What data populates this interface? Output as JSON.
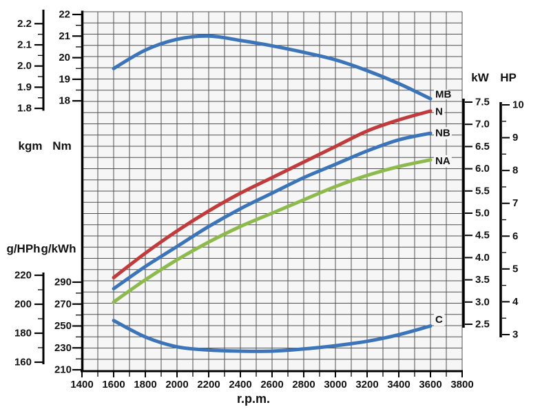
{
  "chart_data": {
    "type": "line",
    "title": "",
    "grid": true,
    "x_axis": {
      "label": "r.p.m.",
      "min": 1400,
      "max": 3800,
      "major_step": 200,
      "minor_step": 100,
      "tick_labels": [
        "1400",
        "1600",
        "1800",
        "2000",
        "2200",
        "2400",
        "2600",
        "2800",
        "3000",
        "3200",
        "3400",
        "3600",
        "3800"
      ]
    },
    "left_top_axes": {
      "kgm": {
        "label": "kgm",
        "min": 1.8,
        "max": 2.2,
        "major_step": 0.1,
        "minor_step": 0.05,
        "tick_labels": [
          "2.2",
          "2.1",
          "2.0",
          "1.9",
          "1.8"
        ]
      },
      "nm": {
        "label": "Nm",
        "min": 18,
        "max": 22,
        "major_step": 1,
        "minor_step": 0.5,
        "tick_labels": [
          "22",
          "21",
          "20",
          "19",
          "18"
        ]
      }
    },
    "left_bottom_axes": {
      "g_hph": {
        "label": "g/HPh",
        "min": 160,
        "max": 220,
        "major_step": 20,
        "minor_step": 10,
        "tick_labels": [
          "220",
          "200",
          "180",
          "160"
        ]
      },
      "g_kwh": {
        "label": "g/kWh",
        "min": 210,
        "max": 290,
        "major_step": 20,
        "minor_step": 10,
        "tick_labels": [
          "290",
          "270",
          "250",
          "230",
          "210"
        ]
      }
    },
    "right_axes": {
      "kw": {
        "label": "kW",
        "min": 2.5,
        "max": 7.5,
        "major_step": 0.5,
        "tick_labels": [
          "7.5",
          "7.0",
          "6.5",
          "6.0",
          "5.5",
          "5.0",
          "4.5",
          "4.0",
          "3.5",
          "3.0",
          "2.5"
        ]
      },
      "hp": {
        "label": "HP",
        "min": 3,
        "max": 10,
        "major_step": 1,
        "minor_step": 0.5,
        "tick_labels": [
          "10",
          "9",
          "8",
          "7",
          "6",
          "5",
          "4",
          "3"
        ]
      }
    },
    "series": [
      {
        "name": "MB",
        "kind": "torque",
        "unit": "Nm",
        "color": "#3c74b9",
        "points": [
          [
            1600,
            19.5
          ],
          [
            1800,
            20.35
          ],
          [
            2000,
            20.85
          ],
          [
            2200,
            21.0
          ],
          [
            2400,
            20.8
          ],
          [
            2600,
            20.55
          ],
          [
            2800,
            20.25
          ],
          [
            3000,
            19.9
          ],
          [
            3200,
            19.4
          ],
          [
            3400,
            18.8
          ],
          [
            3600,
            18.1
          ]
        ]
      },
      {
        "name": "N",
        "kind": "power",
        "unit": "kW",
        "color": "#c13a3c",
        "points": [
          [
            1600,
            3.55
          ],
          [
            1800,
            4.1
          ],
          [
            2000,
            4.6
          ],
          [
            2200,
            5.05
          ],
          [
            2400,
            5.45
          ],
          [
            2600,
            5.8
          ],
          [
            2800,
            6.15
          ],
          [
            3000,
            6.5
          ],
          [
            3200,
            6.85
          ],
          [
            3400,
            7.1
          ],
          [
            3600,
            7.3
          ]
        ]
      },
      {
        "name": "NB",
        "kind": "power",
        "unit": "kW",
        "color": "#3c74b9",
        "points": [
          [
            1600,
            3.3
          ],
          [
            1800,
            3.8
          ],
          [
            2000,
            4.25
          ],
          [
            2200,
            4.7
          ],
          [
            2400,
            5.1
          ],
          [
            2600,
            5.45
          ],
          [
            2800,
            5.8
          ],
          [
            3000,
            6.1
          ],
          [
            3200,
            6.4
          ],
          [
            3400,
            6.65
          ],
          [
            3600,
            6.8
          ]
        ]
      },
      {
        "name": "NA",
        "kind": "power",
        "unit": "kW",
        "color": "#8dba4d",
        "points": [
          [
            1600,
            3.0
          ],
          [
            1800,
            3.5
          ],
          [
            2000,
            3.95
          ],
          [
            2200,
            4.35
          ],
          [
            2400,
            4.7
          ],
          [
            2600,
            5.0
          ],
          [
            2800,
            5.3
          ],
          [
            3000,
            5.6
          ],
          [
            3200,
            5.85
          ],
          [
            3400,
            6.05
          ],
          [
            3600,
            6.2
          ]
        ]
      },
      {
        "name": "C",
        "kind": "fuel",
        "unit": "g/kWh",
        "color": "#3c74b9",
        "points": [
          [
            1600,
            255
          ],
          [
            1800,
            240
          ],
          [
            2000,
            231
          ],
          [
            2200,
            228
          ],
          [
            2400,
            227
          ],
          [
            2600,
            227
          ],
          [
            2800,
            229
          ],
          [
            3000,
            232
          ],
          [
            3200,
            236
          ],
          [
            3400,
            242
          ],
          [
            3600,
            250
          ]
        ]
      }
    ],
    "colors": {
      "curve_blue": "#3c74b9",
      "curve_red": "#c13a3c",
      "curve_green": "#8dba4d",
      "grid_line": "#4f4f4f",
      "plot_background": "#f6f6f6",
      "axis": "#000000"
    }
  }
}
